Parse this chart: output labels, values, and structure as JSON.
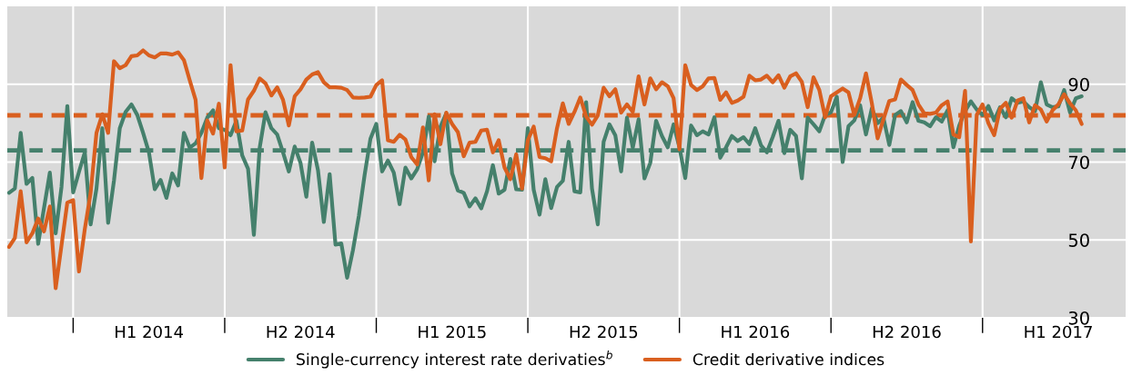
{
  "chart_data": {
    "type": "line",
    "categories": [
      null,
      null,
      null,
      null,
      null,
      null,
      null,
      null,
      null,
      null,
      null,
      null,
      null,
      null,
      null,
      null,
      null,
      null,
      null,
      null,
      null,
      null,
      null,
      null,
      "H1 2014",
      null,
      null,
      null,
      null,
      null,
      null,
      null,
      null,
      null,
      null,
      null,
      null,
      null,
      null,
      null,
      null,
      null,
      null,
      null,
      null,
      null,
      null,
      null,
      null,
      null,
      "H2 2014",
      null,
      null,
      null,
      null,
      null,
      null,
      null,
      null,
      null,
      null,
      null,
      null,
      null,
      null,
      null,
      null,
      null,
      null,
      null,
      null,
      null,
      null,
      null,
      null,
      null,
      "H1 2015",
      null,
      null,
      null,
      null,
      null,
      null,
      null,
      null,
      null,
      null,
      null,
      null,
      null,
      null,
      null,
      null,
      null,
      null,
      null,
      null,
      null,
      null,
      null,
      null,
      null,
      "H2 2015",
      null,
      null,
      null,
      null,
      null,
      null,
      null,
      null,
      null,
      null,
      null,
      null,
      null,
      null,
      null,
      null,
      null,
      null,
      null,
      null,
      null,
      null,
      null,
      null,
      null,
      "H1 2016",
      null,
      null,
      null,
      null,
      null,
      null,
      null,
      null,
      null,
      null,
      null,
      null,
      null,
      null,
      null,
      null,
      null,
      null,
      null,
      null,
      null,
      null,
      null,
      null,
      null,
      "H2 2016",
      null,
      null,
      null,
      null,
      null,
      null,
      null,
      null,
      null,
      null,
      null,
      null,
      null,
      null,
      null,
      null,
      null,
      null,
      null,
      null,
      null,
      null,
      null,
      null,
      null,
      "H1 2017",
      null,
      null,
      null,
      null
    ],
    "ylim": [
      30,
      110
    ],
    "yticks": [
      30,
      50,
      70,
      90
    ],
    "grid": true,
    "legend": "bottom",
    "marker": "none",
    "line_style": "solid",
    "ref_lines": [
      {
        "axis": "y",
        "value": 82,
        "label": null,
        "color": "#d95f1f",
        "line_style": "dashed"
      },
      {
        "axis": "y",
        "value": 73,
        "label": null,
        "color": "#45806c",
        "line_style": "dashed"
      }
    ],
    "series": [
      {
        "name": "Single-currency interest rate derivaties$^{b}$",
        "color": "#45806c",
        "values": [
          62.1,
          63.2,
          77.5,
          64.4,
          65.9,
          49.0,
          58.2,
          67.3,
          51.7,
          63.6,
          84.4,
          62.2,
          67.5,
          72.5,
          54.0,
          63.2,
          78.7,
          54.4,
          65.2,
          78.7,
          82.9,
          84.8,
          82.1,
          77.5,
          72.5,
          63.0,
          65.4,
          60.8,
          67.1,
          64.0,
          77.5,
          73.7,
          74.8,
          77.5,
          81.4,
          83.3,
          78.7,
          78.3,
          76.9,
          80.6,
          71.7,
          68.3,
          51.3,
          73.7,
          82.8,
          78.7,
          77.1,
          72.5,
          67.6,
          74.0,
          69.8,
          61.1,
          75.0,
          67.9,
          54.6,
          66.9,
          48.8,
          49.1,
          40.3,
          47.4,
          56.1,
          66.7,
          76.0,
          79.8,
          67.6,
          70.4,
          67.3,
          59.2,
          68.6,
          65.8,
          68.1,
          72.5,
          81.7,
          70.2,
          79.1,
          82.5,
          67.1,
          62.7,
          62.1,
          58.6,
          60.7,
          58.1,
          62.5,
          69.2,
          61.9,
          62.9,
          70.8,
          63.0,
          62.9,
          78.7,
          62.9,
          56.5,
          65.6,
          58.2,
          63.6,
          65.2,
          75.2,
          62.5,
          62.2,
          85.4,
          63.2,
          54.0,
          75.2,
          79.7,
          76.9,
          67.6,
          81.4,
          73.7,
          81.0,
          65.8,
          69.8,
          80.6,
          76.7,
          73.8,
          79.7,
          73.8,
          65.9,
          79.4,
          76.9,
          77.9,
          77.1,
          81.5,
          71.1,
          73.8,
          76.7,
          75.4,
          76.4,
          74.6,
          78.7,
          74.3,
          72.5,
          76.4,
          80.6,
          72.3,
          78.3,
          76.7,
          65.8,
          81.4,
          79.7,
          77.9,
          82.1,
          82.8,
          86.8,
          70.0,
          79.2,
          80.7,
          84.6,
          77.1,
          83.8,
          80.0,
          81.4,
          74.4,
          82.1,
          83.1,
          80.2,
          85.4,
          80.6,
          80.2,
          79.2,
          81.5,
          80.4,
          83.3,
          73.8,
          79.4,
          83.1,
          85.6,
          83.5,
          82.1,
          84.4,
          80.7,
          84.1,
          81.5,
          86.4,
          85.2,
          85.6,
          84.1,
          83.1,
          90.5,
          84.8,
          84.1,
          84.3,
          88.5,
          82.8,
          86.4,
          86.9
        ]
      },
      {
        "name": "Credit derivative indices",
        "color": "#d95f1f",
        "values": [
          48.2,
          50.5,
          62.5,
          49.4,
          51.7,
          55.5,
          52.2,
          58.6,
          37.6,
          48.6,
          59.6,
          60.2,
          41.9,
          52.8,
          62.1,
          77.5,
          82.3,
          77.5,
          95.9,
          94.1,
          94.9,
          97.2,
          97.4,
          98.7,
          97.4,
          96.9,
          97.9,
          97.9,
          97.6,
          98.2,
          96.2,
          91.0,
          86.0,
          65.9,
          80.7,
          77.3,
          85.0,
          68.6,
          94.9,
          77.9,
          78.1,
          86.1,
          88.3,
          91.5,
          90.2,
          87.1,
          89.2,
          86.0,
          79.4,
          86.9,
          88.7,
          91.2,
          92.5,
          93.1,
          90.5,
          89.2,
          89.2,
          89.1,
          88.5,
          86.6,
          86.5,
          86.6,
          86.8,
          89.8,
          91.0,
          75.6,
          75.2,
          77.0,
          75.8,
          71.3,
          69.4,
          78.9,
          65.3,
          82.3,
          74.6,
          82.7,
          79.8,
          77.7,
          71.5,
          75.0,
          75.2,
          78.1,
          78.3,
          72.5,
          75.6,
          68.6,
          65.6,
          72.0,
          63.2,
          75.6,
          79.1,
          71.3,
          71.0,
          70.2,
          78.7,
          85.1,
          79.8,
          82.9,
          86.6,
          81.7,
          79.6,
          82.0,
          89.1,
          86.9,
          88.7,
          82.7,
          84.8,
          82.9,
          92.0,
          84.8,
          91.5,
          88.7,
          90.5,
          89.5,
          86.4,
          73.3,
          94.9,
          89.8,
          88.5,
          89.5,
          91.5,
          91.6,
          86.0,
          87.9,
          85.2,
          85.8,
          86.8,
          92.2,
          91.0,
          91.2,
          92.2,
          90.5,
          92.3,
          89.1,
          92.0,
          92.8,
          90.6,
          84.1,
          91.8,
          88.5,
          81.5,
          86.9,
          87.9,
          88.9,
          87.9,
          82.1,
          86.4,
          92.8,
          85.2,
          76.1,
          81.0,
          85.7,
          86.1,
          91.2,
          89.8,
          88.5,
          84.8,
          82.5,
          82.4,
          82.7,
          84.6,
          85.6,
          77.1,
          76.4,
          88.3,
          49.6,
          82.1,
          84.8,
          80.0,
          76.9,
          83.7,
          85.2,
          81.4,
          85.8,
          86.4,
          80.2,
          84.6,
          83.5,
          80.4,
          83.3,
          84.8,
          87.4,
          85.1,
          83.3,
          79.8
        ]
      }
    ]
  }
}
